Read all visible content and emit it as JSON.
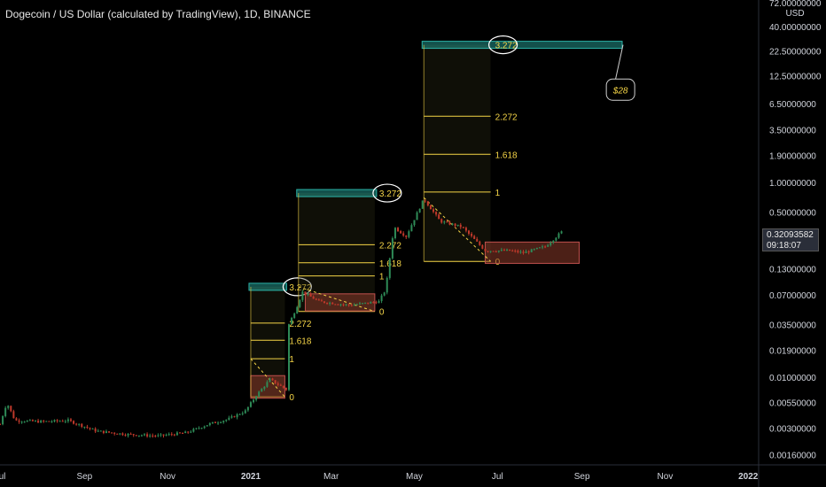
{
  "title": "Dogecoin / US Dollar (calculated by TradingView), 1D, BINANCE",
  "current_price": "0.32093582",
  "countdown": "09:18:07",
  "colors": {
    "background": "#000000",
    "fib_line": "#f5d547",
    "fib_text": "#f5d547",
    "target_zone": "#2bb3a8",
    "consolidation_box": "#8b3a2a",
    "candle_up": "#2e8b57",
    "candle_down": "#c0392b",
    "axis_text": "#d1d4dc"
  },
  "chart_data": {
    "type": "candlestick",
    "y_scale": "log",
    "ylim": [
      0.0014,
      75
    ],
    "xlim": [
      "2020-07-01",
      "2022-01-08"
    ],
    "y_axis_unit": "USD",
    "y_tick_labels": [
      "72.00000000",
      "40.00000000",
      "22.50000000",
      "12.50000000",
      "6.50000000",
      "3.50000000",
      "1.90000000",
      "1.00000000",
      "0.50000000",
      "0.13000000",
      "0.07000000",
      "0.03500000",
      "0.01900000",
      "0.01000000",
      "0.00550000",
      "0.00300000",
      "0.00160000"
    ],
    "x_tick_labels": [
      {
        "label": "Jul",
        "date": "2020-07-01"
      },
      {
        "label": "Sep",
        "date": "2020-09-01"
      },
      {
        "label": "Nov",
        "date": "2020-11-01"
      },
      {
        "label": "2021",
        "date": "2021-01-01"
      },
      {
        "label": "Mar",
        "date": "2021-03-01"
      },
      {
        "label": "May",
        "date": "2021-05-01"
      },
      {
        "label": "Jul",
        "date": "2021-07-01"
      },
      {
        "label": "Sep",
        "date": "2021-09-01"
      },
      {
        "label": "Nov",
        "date": "2021-11-01"
      },
      {
        "label": "2022",
        "date": "2022-01-01"
      }
    ],
    "price_path": [
      [
        "2020-07-01",
        0.0033
      ],
      [
        "2020-07-06",
        0.0055
      ],
      [
        "2020-07-12",
        0.0036
      ],
      [
        "2020-08-01",
        0.0035
      ],
      [
        "2020-08-20",
        0.0036
      ],
      [
        "2020-09-10",
        0.0028
      ],
      [
        "2020-10-01",
        0.0026
      ],
      [
        "2020-10-25",
        0.0025
      ],
      [
        "2020-11-15",
        0.0027
      ],
      [
        "2020-12-01",
        0.0033
      ],
      [
        "2020-12-15",
        0.0037
      ],
      [
        "2020-12-28",
        0.0045
      ],
      [
        "2021-01-05",
        0.0065
      ],
      [
        "2021-01-15",
        0.0095
      ],
      [
        "2021-01-27",
        0.0075
      ],
      [
        "2021-01-29",
        0.035
      ],
      [
        "2021-02-03",
        0.05
      ],
      [
        "2021-02-08",
        0.075
      ],
      [
        "2021-02-20",
        0.06
      ],
      [
        "2021-03-15",
        0.055
      ],
      [
        "2021-04-05",
        0.06
      ],
      [
        "2021-04-10",
        0.08
      ],
      [
        "2021-04-16",
        0.35
      ],
      [
        "2021-04-25",
        0.28
      ],
      [
        "2021-05-08",
        0.68
      ],
      [
        "2021-05-20",
        0.4
      ],
      [
        "2021-06-05",
        0.35
      ],
      [
        "2021-06-22",
        0.2
      ],
      [
        "2021-07-10",
        0.2
      ],
      [
        "2021-07-20",
        0.19
      ],
      [
        "2021-08-05",
        0.22
      ],
      [
        "2021-08-18",
        0.32
      ]
    ],
    "fib_extensions": [
      {
        "name": "fib-1",
        "x_start": "2021-01-01",
        "x_end": "2021-01-26",
        "levels": [
          {
            "label": "0",
            "price": 0.0063
          },
          {
            "label": "1",
            "price": 0.0155
          },
          {
            "label": "1.618",
            "price": 0.024
          },
          {
            "label": "2.272",
            "price": 0.036
          },
          {
            "label": "3.272",
            "price": 0.085
          }
        ],
        "box": [
          "2021-01-01",
          "2021-01-26",
          0.0061,
          0.0104
        ],
        "trend": [
          "2021-01-01",
          0.0155,
          "2021-01-26",
          0.0063
        ]
      },
      {
        "name": "fib-2",
        "x_start": "2021-02-05",
        "x_end": "2021-04-02",
        "levels": [
          {
            "label": "0",
            "price": 0.0475
          },
          {
            "label": "1",
            "price": 0.11
          },
          {
            "label": "1.618",
            "price": 0.15
          },
          {
            "label": "2.272",
            "price": 0.23
          },
          {
            "label": "3.272",
            "price": 0.78
          }
        ],
        "box": [
          "2021-02-10",
          "2021-04-02",
          0.048,
          0.072
        ],
        "trend": [
          "2021-02-05",
          0.085,
          "2021-04-02",
          0.0475
        ]
      },
      {
        "name": "fib-3",
        "x_start": "2021-05-08",
        "x_end": "2021-06-26",
        "levels": [
          {
            "label": "0",
            "price": 0.155
          },
          {
            "label": "1",
            "price": 0.8
          },
          {
            "label": "1.618",
            "price": 1.95
          },
          {
            "label": "2.272",
            "price": 4.8
          },
          {
            "label": "3.272",
            "price": 26
          }
        ],
        "box": [
          "2021-06-22",
          "2021-08-30",
          0.148,
          0.245
        ],
        "trend": [
          "2021-05-08",
          0.7,
          "2021-06-26",
          0.155
        ]
      }
    ],
    "annotation": {
      "text": "$28",
      "price": 9.0,
      "date": "2021-09-28"
    }
  }
}
